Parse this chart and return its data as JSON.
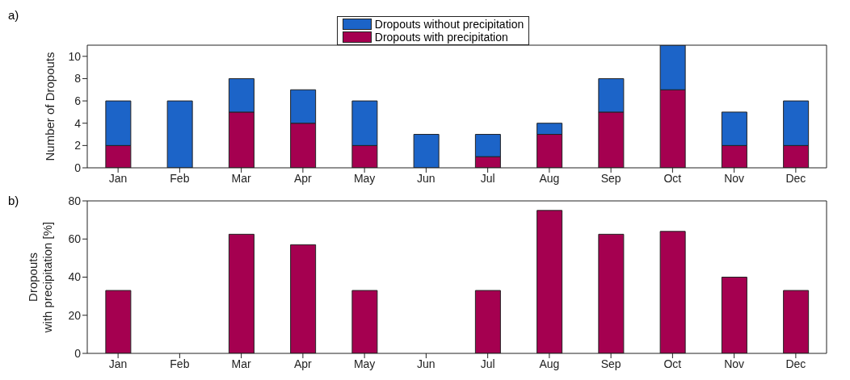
{
  "chart_data": [
    {
      "type": "bar",
      "stacked": true,
      "ylabel": "Number of Dropouts",
      "annotations": [
        "a)"
      ],
      "categories": [
        "Jan",
        "Feb",
        "Mar",
        "Apr",
        "May",
        "Jun",
        "Jul",
        "Aug",
        "Sep",
        "Oct",
        "Nov",
        "Dec"
      ],
      "series": [
        {
          "name": "Dropouts with precipitation",
          "color": "#a50050",
          "values": [
            2,
            0,
            5,
            4,
            2,
            0,
            1,
            3,
            5,
            7,
            2,
            2
          ]
        },
        {
          "name": "Dropouts without precipitation",
          "color": "#1c64c8",
          "values": [
            4,
            6,
            3,
            3,
            4,
            3,
            2,
            1,
            3,
            4,
            3,
            4
          ]
        }
      ],
      "ylim": [
        0,
        11
      ],
      "yticks": [
        0,
        2,
        4,
        6,
        8,
        10
      ],
      "legend": "top"
    },
    {
      "type": "bar",
      "ylabel": "Dropouts\nwith precipitation [%]",
      "annotations": [
        "b)"
      ],
      "categories": [
        "Jan",
        "Feb",
        "Mar",
        "Apr",
        "May",
        "Jun",
        "Jul",
        "Aug",
        "Sep",
        "Oct",
        "Nov",
        "Dec"
      ],
      "color": "#a50050",
      "values": [
        33,
        0,
        62.5,
        57,
        33,
        0,
        33,
        75,
        62.5,
        64,
        40,
        33
      ],
      "ylim": [
        0,
        80
      ],
      "yticks": [
        0,
        20,
        40,
        60,
        80
      ]
    }
  ]
}
